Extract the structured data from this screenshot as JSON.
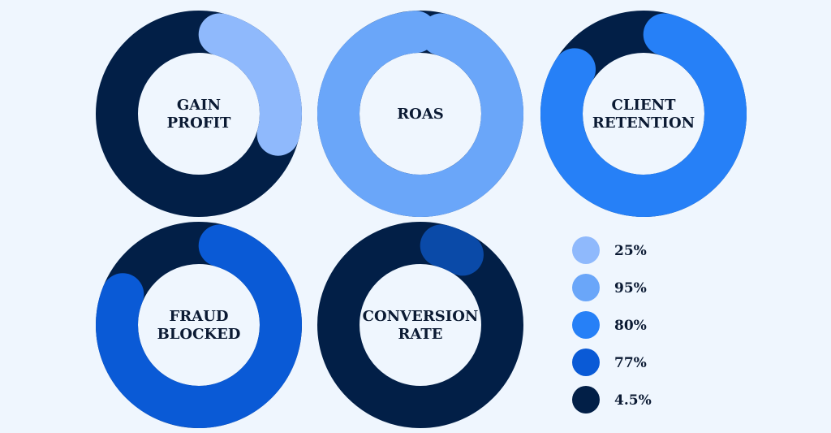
{
  "chart_data": {
    "type": "donut",
    "background_color": "#eff6fe",
    "track_color": "#021f47",
    "donuts": [
      {
        "label_lines": [
          "GAIN",
          "PROFIT"
        ],
        "value_percent": 25,
        "color": "#8fb9fc"
      },
      {
        "label_lines": [
          "ROAS"
        ],
        "value_percent": 95,
        "color": "#6aa6f9"
      },
      {
        "label_lines": [
          "CLIENT",
          "RETENTION"
        ],
        "value_percent": 80,
        "color": "#2680f7"
      },
      {
        "label_lines": [
          "FRAUD",
          "BLOCKED"
        ],
        "value_percent": 77,
        "color": "#0a5ad6"
      },
      {
        "label_lines": [
          "CONVERSION",
          "RATE"
        ],
        "value_percent": 4.5,
        "color": "#0a4aa8"
      }
    ],
    "legend": {
      "placement": "bottom-right",
      "items": [
        {
          "label": "25%",
          "color": "#8fb9fc"
        },
        {
          "label": "95%",
          "color": "#6aa6f9"
        },
        {
          "label": "80%",
          "color": "#2680f7"
        },
        {
          "label": "77%",
          "color": "#0a5ad6"
        },
        {
          "label": "4.5%",
          "color": "#021f47"
        }
      ]
    }
  }
}
